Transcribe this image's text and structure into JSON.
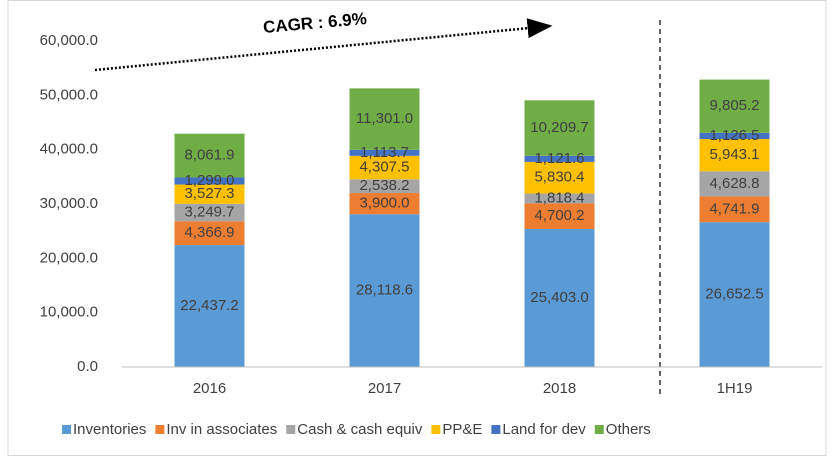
{
  "chart_data": {
    "type": "stacked_bar",
    "annotation": "CAGR : 6.9%",
    "categories": [
      "2016",
      "2017",
      "2018",
      "1H19"
    ],
    "series": [
      {
        "name": "Inventories",
        "color": "#5b9bd5",
        "values": [
          22437.2,
          28118.6,
          25403.0,
          26652.5
        ],
        "value_labels": [
          "22,437.2",
          "28,118.6",
          "25,403.0",
          "26,652.5"
        ]
      },
      {
        "name": "Inv in associates",
        "color": "#ed7d31",
        "values": [
          4366.9,
          3900.0,
          4700.2,
          4741.9
        ],
        "value_labels": [
          "4,366.9",
          "3,900.0",
          "4,700.2",
          "4,741.9"
        ]
      },
      {
        "name": "Cash & cash equiv",
        "color": "#a5a5a5",
        "values": [
          3249.7,
          2538.2,
          1818.4,
          4628.8
        ],
        "value_labels": [
          "3,249.7",
          "2,538.2",
          "1,818.4",
          "4,628.8"
        ]
      },
      {
        "name": "PP&E",
        "color": "#ffc000",
        "values": [
          3527.3,
          4307.5,
          5830.4,
          5943.1
        ],
        "value_labels": [
          "3,527.3",
          "4,307.5",
          "5,830.4",
          "5,943.1"
        ]
      },
      {
        "name": "Land for dev",
        "color": "#4472c4",
        "values": [
          1299.0,
          1113.7,
          1121.6,
          1126.5
        ],
        "value_labels": [
          "1,299.0",
          "1,113.7",
          "1,121.6",
          "1,126.5"
        ]
      },
      {
        "name": "Others",
        "color": "#70ad47",
        "values": [
          8061.9,
          11301.0,
          10209.7,
          9805.2
        ],
        "value_labels": [
          "8,061.9",
          "11,301.0",
          "10,209.7",
          "9,805.2"
        ]
      }
    ],
    "ylim": [
      0,
      60000
    ],
    "yticks": [
      {
        "value": 0,
        "label": "0.0"
      },
      {
        "value": 10000,
        "label": "10,000.0"
      },
      {
        "value": 20000,
        "label": "20,000.0"
      },
      {
        "value": 30000,
        "label": "30,000.0"
      },
      {
        "value": 40000,
        "label": "40,000.0"
      },
      {
        "value": 50000,
        "label": "50,000.0"
      },
      {
        "value": 60000,
        "label": "60,000.0"
      }
    ],
    "grid": false,
    "legend": "bottom"
  }
}
